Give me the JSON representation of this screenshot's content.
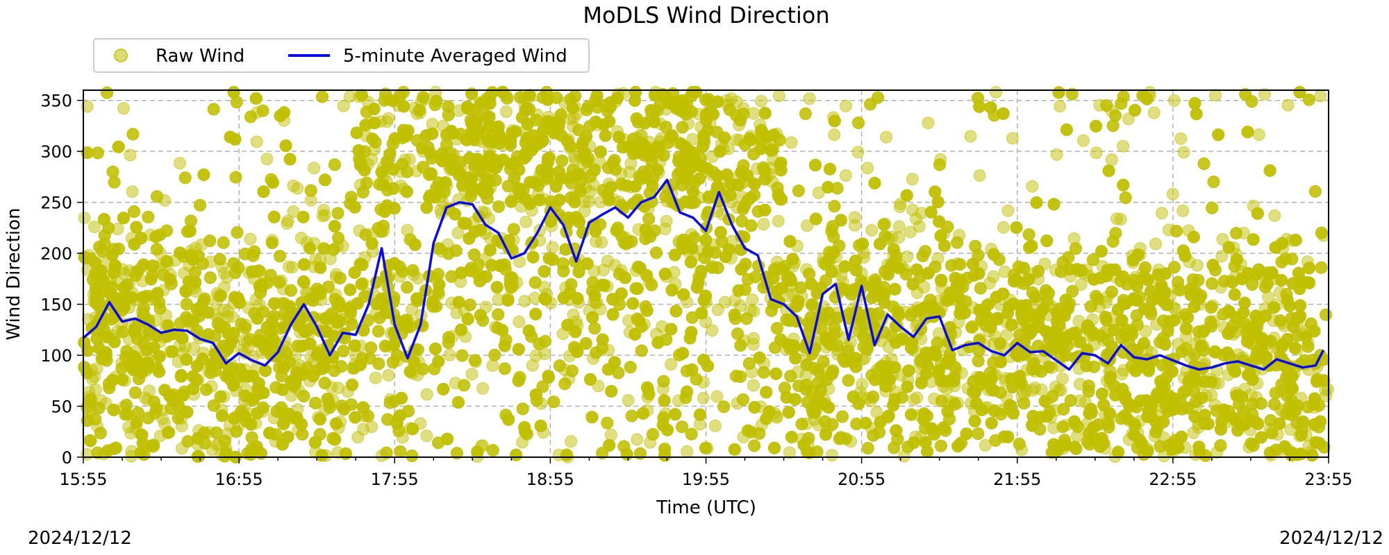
{
  "chart_data": {
    "type": "scatter",
    "title": "MoDLS Wind Direction",
    "xlabel": "Time (UTC)",
    "ylabel": "Wind Direction",
    "x_tick_labels": [
      "15:55",
      "16:55",
      "17:55",
      "18:55",
      "19:55",
      "20:55",
      "21:55",
      "22:55",
      "23:55"
    ],
    "x_tick_minutes": [
      0,
      60,
      120,
      180,
      240,
      300,
      360,
      420,
      480
    ],
    "xlim_minutes": [
      0,
      480
    ],
    "minor_tick_interval_minutes": 15,
    "y_ticks": [
      0,
      50,
      100,
      150,
      200,
      250,
      300,
      350
    ],
    "ylim": [
      0,
      360
    ],
    "grid": true,
    "legend_placement": "top-left",
    "date_left": "2024/12/12",
    "date_right": "2024/12/12",
    "series": [
      {
        "name": "Raw Wind",
        "style": "scatter",
        "color": "#c0c000",
        "description_points": "dense scatter, spread across 0-360 with heaviest band near 0-180"
      },
      {
        "name": "5-minute Averaged Wind",
        "style": "line",
        "color": "#0a0ae6",
        "x_minutes": [
          0,
          5,
          10,
          15,
          20,
          25,
          30,
          35,
          40,
          45,
          50,
          55,
          60,
          65,
          70,
          75,
          80,
          85,
          90,
          95,
          100,
          105,
          110,
          115,
          120,
          125,
          130,
          135,
          140,
          145,
          150,
          155,
          160,
          165,
          170,
          175,
          180,
          185,
          190,
          195,
          200,
          205,
          210,
          215,
          220,
          225,
          230,
          235,
          240,
          245,
          250,
          255,
          260,
          265,
          270,
          275,
          280,
          285,
          290,
          295,
          300,
          305,
          310,
          315,
          320,
          325,
          330,
          335,
          340,
          345,
          350,
          355,
          360,
          365,
          370,
          375,
          380,
          385,
          390,
          395,
          400,
          405,
          410,
          415,
          420,
          425,
          430,
          435,
          440,
          445,
          450,
          455,
          460,
          465,
          470,
          475,
          478
        ],
        "values": [
          117,
          128,
          152,
          133,
          136,
          130,
          122,
          125,
          124,
          116,
          112,
          92,
          102,
          95,
          90,
          103,
          130,
          150,
          128,
          100,
          122,
          120,
          150,
          205,
          130,
          97,
          130,
          210,
          245,
          250,
          248,
          228,
          220,
          195,
          200,
          220,
          245,
          228,
          192,
          230,
          238,
          245,
          235,
          250,
          255,
          272,
          240,
          235,
          222,
          260,
          228,
          205,
          198,
          155,
          150,
          138,
          102,
          160,
          170,
          115,
          168,
          110,
          140,
          128,
          118,
          136,
          138,
          105,
          110,
          112,
          104,
          100,
          112,
          103,
          104,
          95,
          86,
          102,
          100,
          92,
          110,
          98,
          96,
          100,
          95,
          90,
          86,
          88,
          92,
          94,
          90,
          86,
          96,
          92,
          88,
          90,
          105
        ]
      }
    ]
  }
}
